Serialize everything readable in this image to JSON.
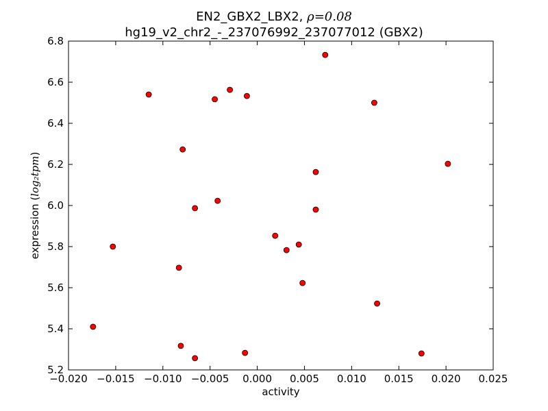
{
  "chart_data": {
    "type": "scatter",
    "title": "EN2_GBX2_LBX2, ",
    "title_rho": "ρ=0.08",
    "subtitle": "hg19_v2_chr2_-_237076992_237077012 (GBX2)",
    "xlabel": "activity",
    "ylabel": "expression (",
    "ylabel_math": "log₂tpm",
    "ylabel_close": ")",
    "xlim": [
      -0.02,
      0.025
    ],
    "ylim": [
      5.2,
      6.8
    ],
    "x_ticks": [
      -0.02,
      -0.015,
      -0.01,
      -0.005,
      0.0,
      0.005,
      0.01,
      0.015,
      0.02,
      0.025
    ],
    "x_tick_labels": [
      "−0.020",
      "−0.015",
      "−0.010",
      "−0.005",
      "0.000",
      "0.005",
      "0.010",
      "0.015",
      "0.020",
      "0.025"
    ],
    "y_ticks": [
      5.2,
      5.4,
      5.6,
      5.8,
      6.0,
      6.2,
      6.4,
      6.6,
      6.8
    ],
    "y_tick_labels": [
      "5.2",
      "5.4",
      "5.6",
      "5.8",
      "6.0",
      "6.2",
      "6.4",
      "6.6",
      "6.8"
    ],
    "grid": false,
    "marker_color": "#ff0000",
    "marker_edge": "#000000",
    "points": [
      {
        "x": 0.0072,
        "y": 6.733
      },
      {
        "x": -0.0115,
        "y": 6.54
      },
      {
        "x": -0.0029,
        "y": 6.563
      },
      {
        "x": -0.0045,
        "y": 6.517
      },
      {
        "x": -0.0011,
        "y": 6.533
      },
      {
        "x": 0.0124,
        "y": 6.5
      },
      {
        "x": -0.0079,
        "y": 6.273
      },
      {
        "x": 0.0062,
        "y": 6.163
      },
      {
        "x": 0.0202,
        "y": 6.203
      },
      {
        "x": -0.0066,
        "y": 5.987
      },
      {
        "x": -0.0042,
        "y": 6.023
      },
      {
        "x": 0.0062,
        "y": 5.98
      },
      {
        "x": 0.0019,
        "y": 5.853
      },
      {
        "x": 0.0044,
        "y": 5.81
      },
      {
        "x": 0.0031,
        "y": 5.783
      },
      {
        "x": -0.0153,
        "y": 5.8
      },
      {
        "x": -0.0083,
        "y": 5.697
      },
      {
        "x": 0.0048,
        "y": 5.623
      },
      {
        "x": 0.0127,
        "y": 5.523
      },
      {
        "x": -0.0174,
        "y": 5.41
      },
      {
        "x": -0.0081,
        "y": 5.317
      },
      {
        "x": -0.0066,
        "y": 5.257
      },
      {
        "x": -0.0013,
        "y": 5.283
      },
      {
        "x": 0.0174,
        "y": 5.28
      }
    ]
  }
}
